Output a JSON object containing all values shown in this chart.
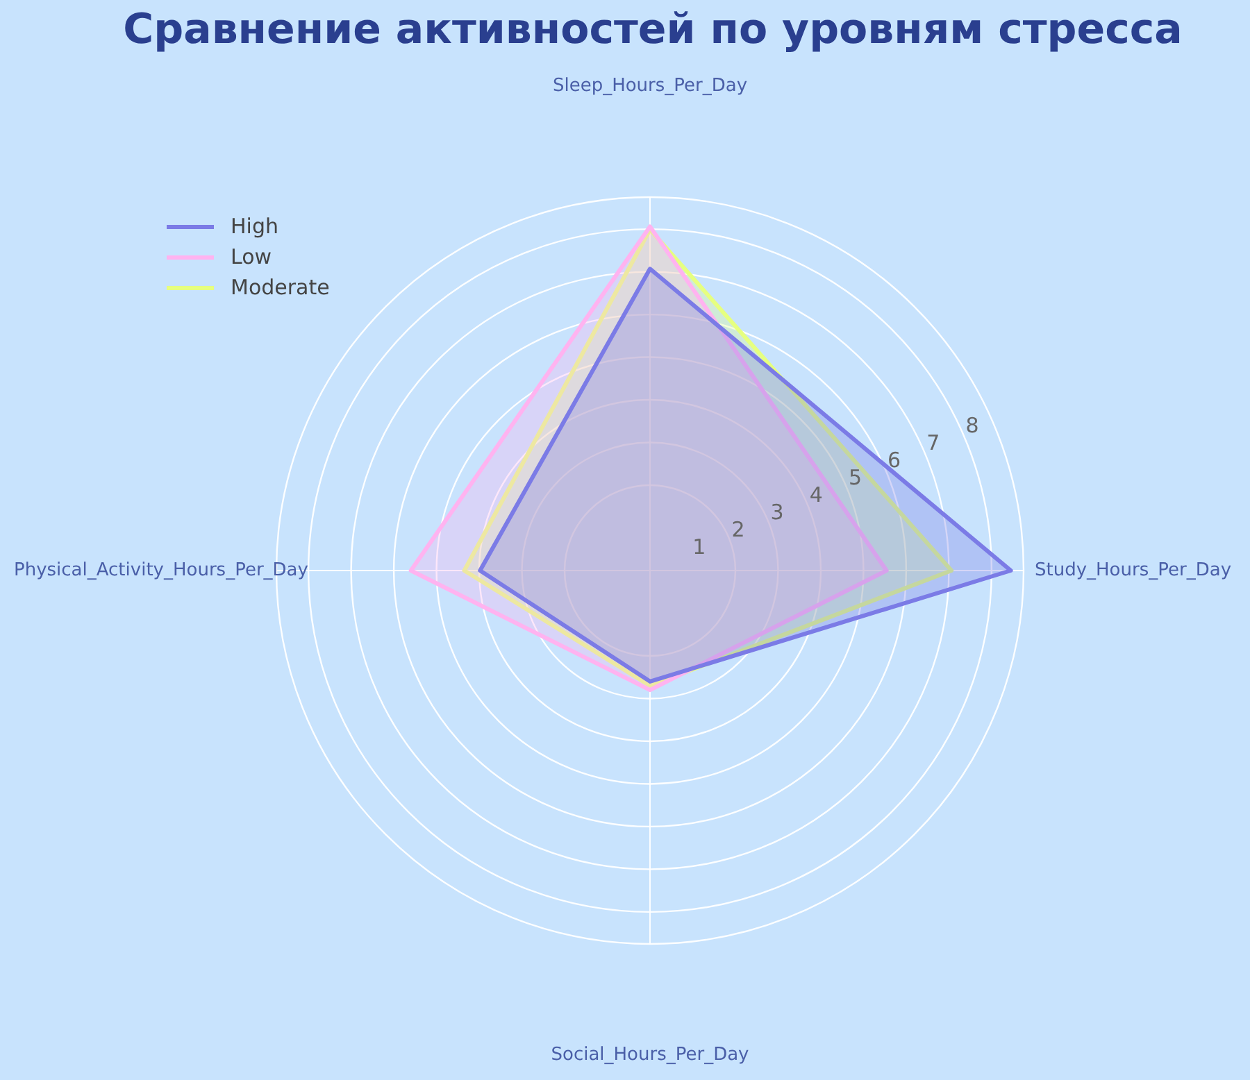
{
  "chart_data": {
    "type": "radar",
    "title": "Сравнение активностей по уровням стресса",
    "categories": [
      "Sleep_Hours_Per_Day",
      "Study_Hours_Per_Day",
      "Social_Hours_Per_Day",
      "Physical_Activity_Hours_Per_Day"
    ],
    "series": [
      {
        "name": "High",
        "color": "#7b7be6",
        "values": [
          7.07,
          8.45,
          2.6,
          3.98
        ]
      },
      {
        "name": "Low",
        "color": "#ffb3f0",
        "values": [
          8.06,
          5.54,
          2.8,
          5.6
        ]
      },
      {
        "name": "Moderate",
        "color": "#e6ff80",
        "values": [
          7.99,
          7.06,
          2.7,
          4.35
        ]
      }
    ],
    "ylim": [
      0,
      8.75
    ],
    "yticks": [
      1,
      2,
      3,
      4,
      5,
      6,
      7,
      8
    ],
    "legend": "top left",
    "grid": true,
    "marker": "none",
    "line_style": "solid"
  }
}
